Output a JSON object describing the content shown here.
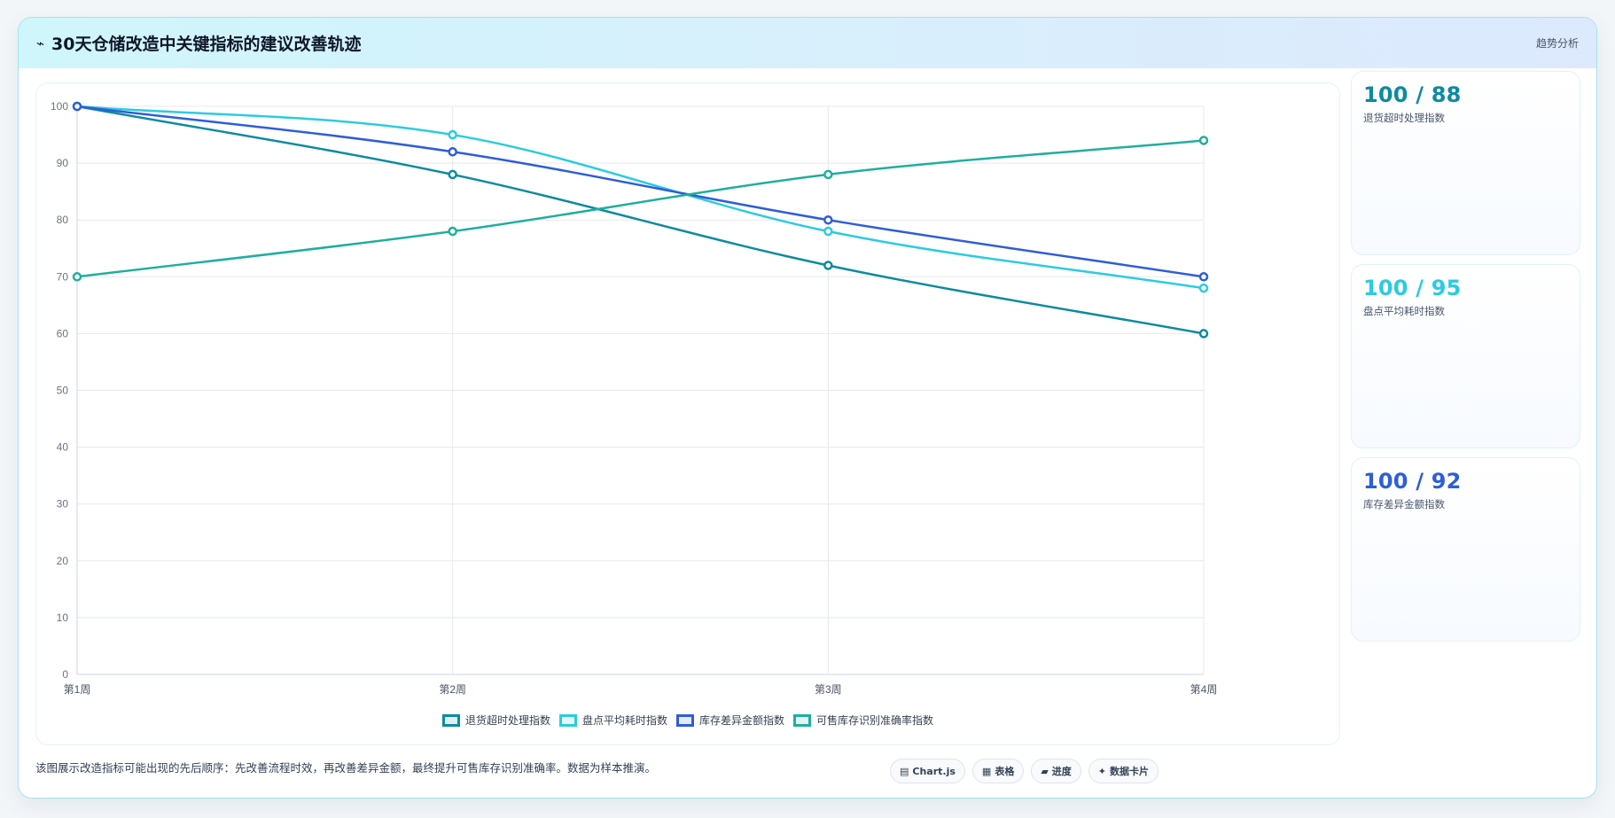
{
  "header": {
    "icon": "trend-line-icon",
    "icon_glyph": "⌁",
    "title": "30天仓储改造中关键指标的建议改善轨迹",
    "right_link": "趋势分析"
  },
  "kpis": [
    {
      "value": "100 / 88",
      "label": "退货超时处理指数",
      "color": "#0e8aa0"
    },
    {
      "value": "100 / 95",
      "label": "盘点平均耗时指数",
      "color": "#2ccbe0"
    },
    {
      "value": "100 / 92",
      "label": "库存差异金额指数",
      "color": "#2e5ed6"
    }
  ],
  "footnote": "该图展示改造指标可能出现的先后顺序：先改善流程时效，再改善差异金额，最终提升可售库存识别准确率。数据为样本推演。",
  "tags": [
    {
      "icon": "chart-icon",
      "glyph": "▤",
      "label": "Chart.js"
    },
    {
      "icon": "table-icon",
      "glyph": "▦",
      "label": "表格"
    },
    {
      "icon": "progress-icon",
      "glyph": "▰",
      "label": "进度"
    },
    {
      "icon": "card-icon",
      "glyph": "✦",
      "label": "数据卡片"
    }
  ],
  "chart_data": {
    "type": "line",
    "categories": [
      "第1周",
      "第2周",
      "第3周",
      "第4周"
    ],
    "ylim": [
      0,
      100
    ],
    "yticks": [
      0,
      10,
      20,
      30,
      40,
      50,
      60,
      70,
      80,
      90,
      100
    ],
    "grid": true,
    "legend_position": "bottom",
    "series": [
      {
        "name": "退货超时处理指数",
        "values": [
          100,
          88,
          72,
          60
        ],
        "color": "#0e8aa0"
      },
      {
        "name": "盘点平均耗时指数",
        "values": [
          100,
          95,
          78,
          68
        ],
        "color": "#2ccbe0"
      },
      {
        "name": "库存差异金额指数",
        "values": [
          100,
          92,
          80,
          70
        ],
        "color": "#2e5ed6"
      },
      {
        "name": "可售库存识别准确率指数",
        "values": [
          70,
          78,
          88,
          94
        ],
        "color": "#1fae9e"
      }
    ]
  }
}
